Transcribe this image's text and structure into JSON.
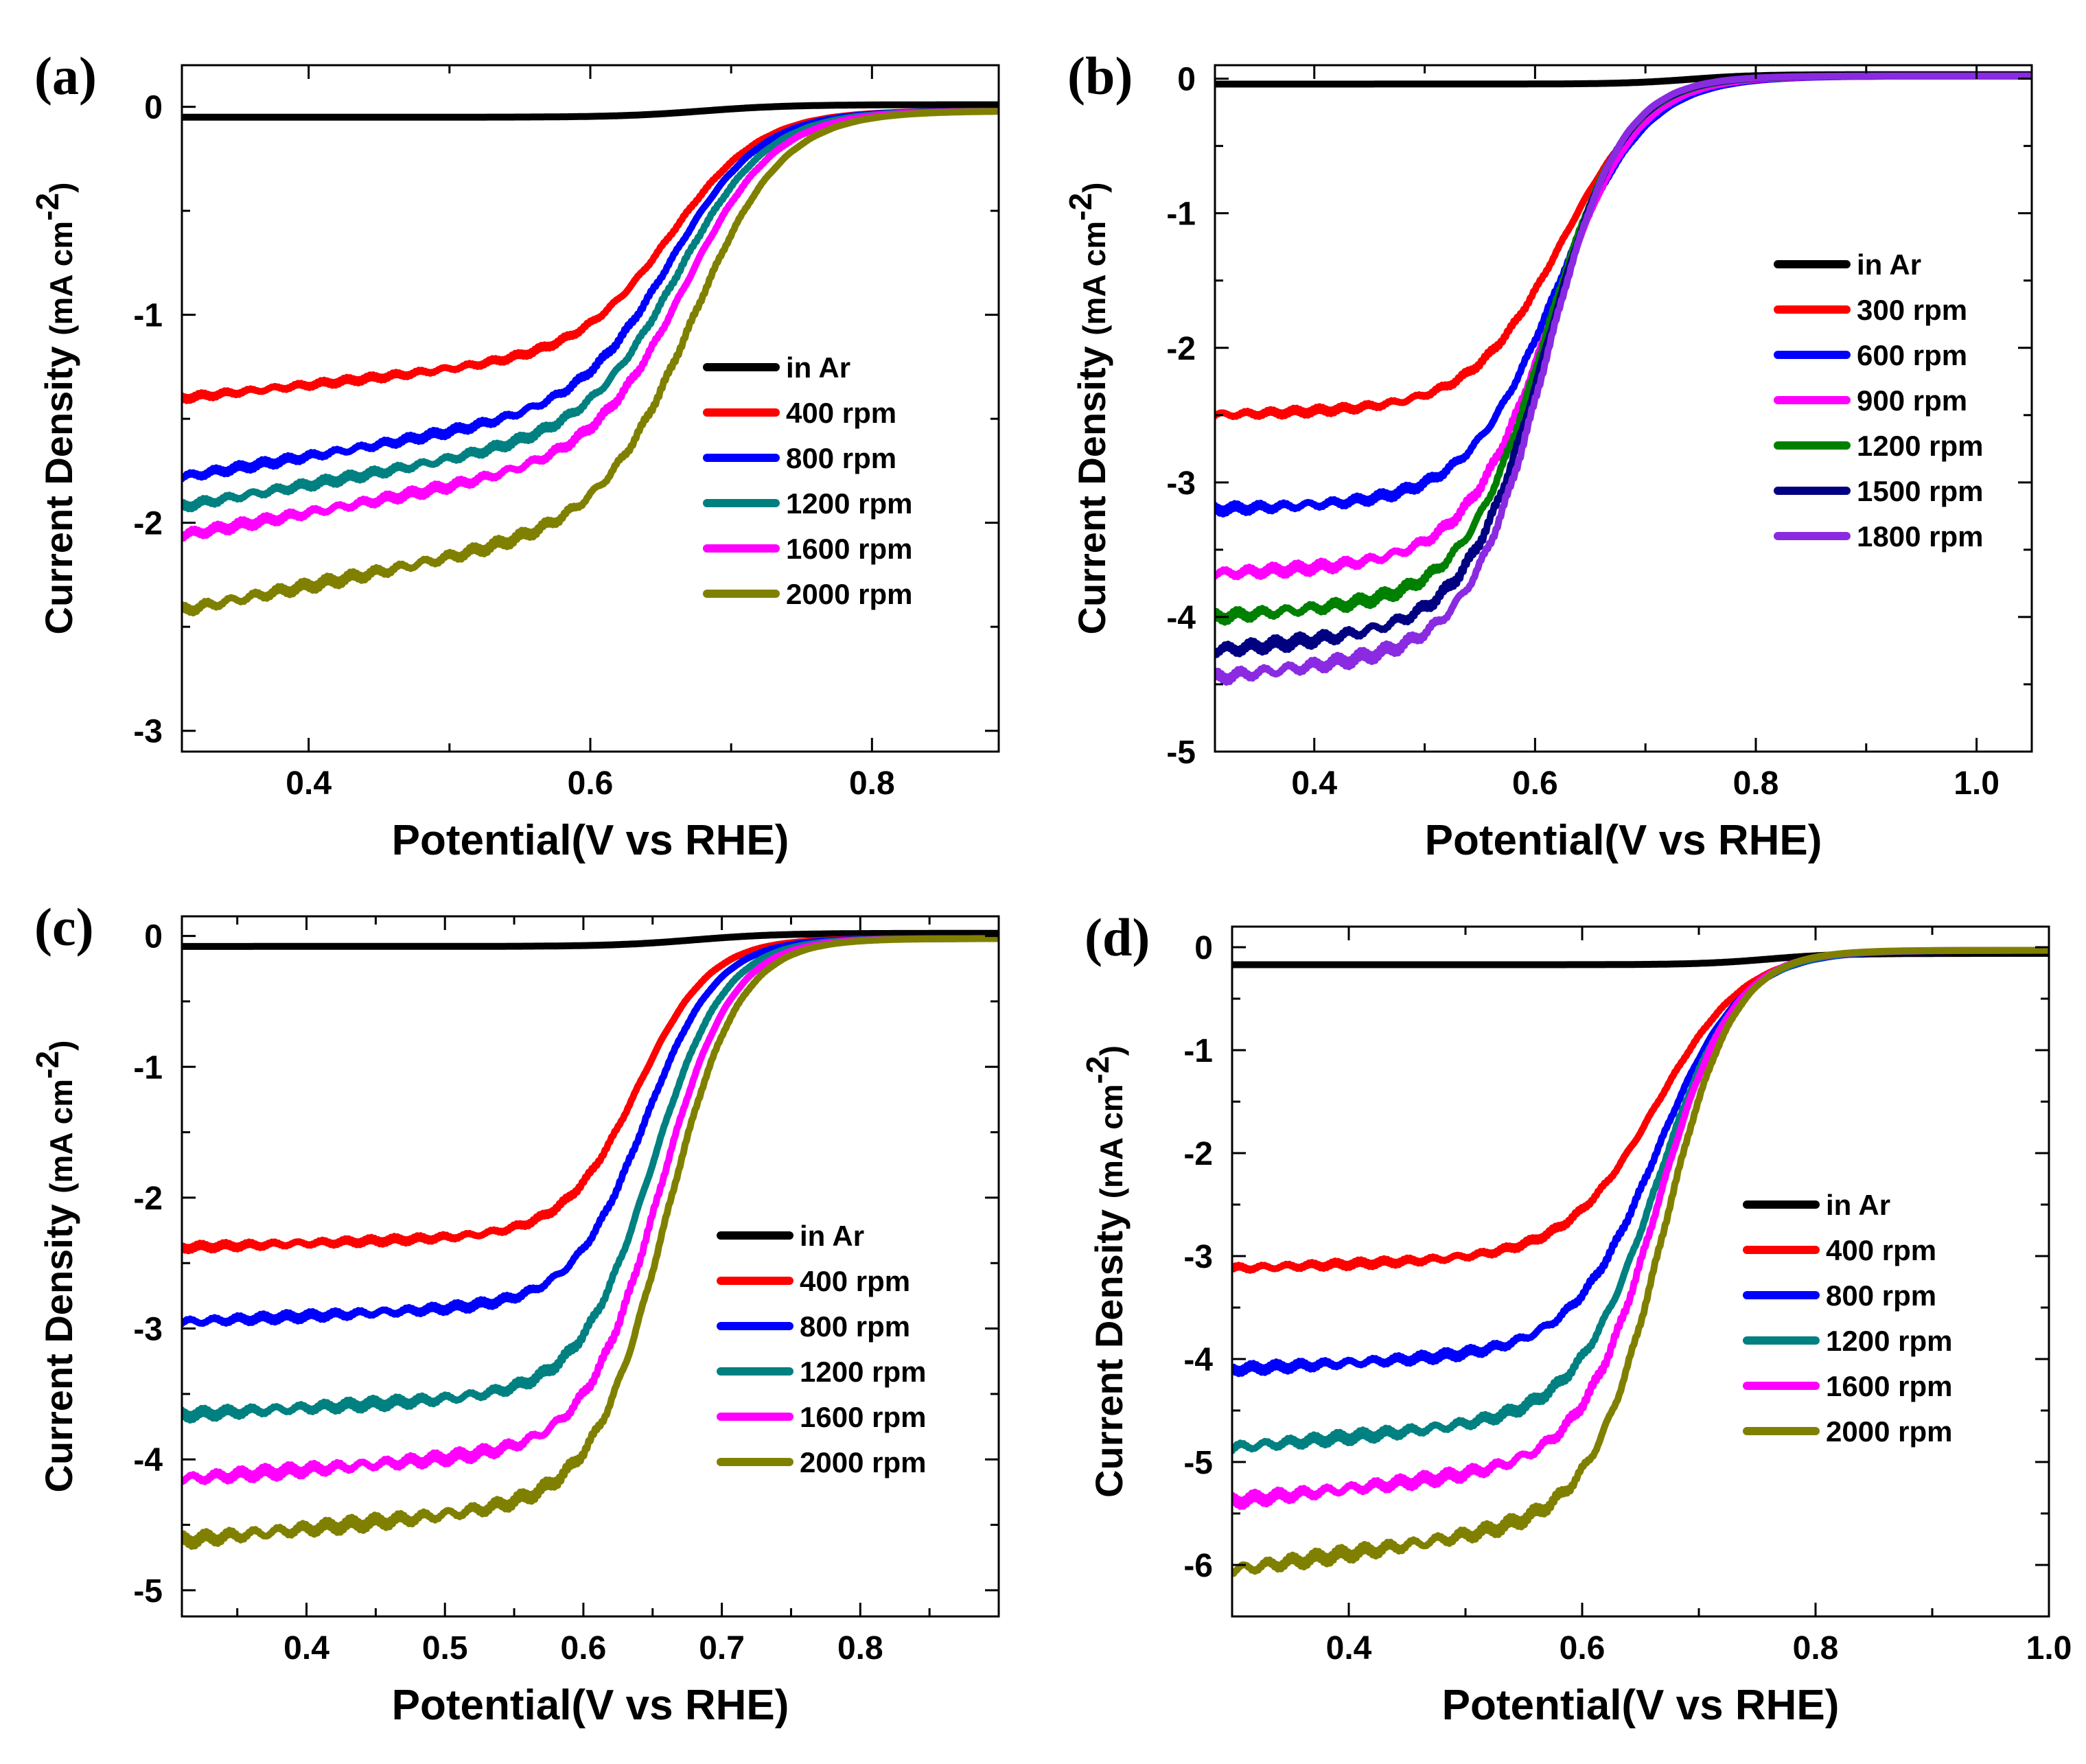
{
  "figure": {
    "panels": [
      "a",
      "b",
      "c",
      "d"
    ]
  },
  "chart_data": [
    {
      "type": "line",
      "panel_label": "(a)",
      "title": "",
      "xlabel": "Potential(V vs RHE)",
      "ylabel": {
        "main": "Current Density",
        "unit": "(mA cm",
        "sup": "-2",
        "close": ")"
      },
      "xlim": [
        0.31,
        0.89
      ],
      "ylim": [
        -3.1,
        0.2
      ],
      "xticks": [
        0.4,
        0.6,
        0.8
      ],
      "xtick_labels": [
        "0.4",
        "0.6",
        "0.8"
      ],
      "yticks": [
        0,
        -1,
        -2,
        -3
      ],
      "ytick_labels": [
        "0",
        "-1",
        "-2",
        "-3"
      ],
      "legend_position": "center-right",
      "series": [
        {
          "name": "in Ar",
          "color": "#000000",
          "curve": {
            "kind": "flat",
            "start": -0.05,
            "end": 0.01,
            "mid": 0.68,
            "w": 0.03
          }
        },
        {
          "name": "400  rpm",
          "color": "#ff0000",
          "curve": {
            "kind": "orr",
            "jL": -1.4,
            "s": 0.7,
            "e": 0.66,
            "w": 0.032,
            "x0": 0.31,
            "end": -0.02
          }
        },
        {
          "name": "800  rpm",
          "color": "#0000ff",
          "curve": {
            "kind": "orr",
            "jL": -1.78,
            "s": 1.1,
            "e": 0.66,
            "w": 0.032,
            "x0": 0.31,
            "end": -0.02
          }
        },
        {
          "name": "1200 rpm",
          "color": "#008080",
          "curve": {
            "kind": "orr",
            "jL": -1.92,
            "s": 1.15,
            "e": 0.665,
            "w": 0.032,
            "x0": 0.31,
            "end": -0.02
          }
        },
        {
          "name": "1600 rpm",
          "color": "#ff00ff",
          "curve": {
            "kind": "orr",
            "jL": -2.06,
            "s": 1.2,
            "e": 0.67,
            "w": 0.032,
            "x0": 0.31,
            "end": -0.02
          }
        },
        {
          "name": "2000 rpm",
          "color": "#808000",
          "curve": {
            "kind": "orr",
            "jL": -2.42,
            "s": 1.3,
            "e": 0.675,
            "w": 0.032,
            "x0": 0.31,
            "end": -0.02
          }
        }
      ]
    },
    {
      "type": "line",
      "panel_label": "(b)",
      "title": "",
      "xlabel": "Potential(V vs RHE)",
      "ylabel": {
        "main": "Current Density",
        "unit": "(mA cm",
        "sup": "-2",
        "close": ")"
      },
      "xlim": [
        0.31,
        1.05
      ],
      "ylim": [
        -5.0,
        0.1
      ],
      "xticks": [
        0.4,
        0.6,
        0.8,
        1.0
      ],
      "xtick_labels": [
        "0.4",
        "0.6",
        "0.8",
        "1.0"
      ],
      "yticks": [
        0,
        -1,
        -2,
        -3,
        -4,
        -5
      ],
      "ytick_labels": [
        "0",
        "-1",
        "-2",
        "-3",
        "-4",
        "-5"
      ],
      "legend_position": "center-right",
      "series": [
        {
          "name": "in Ar",
          "color": "#000000",
          "curve": {
            "kind": "flat",
            "start": -0.04,
            "end": 0.03,
            "mid": 0.74,
            "w": 0.03
          }
        },
        {
          "name": "300  rpm",
          "color": "#ff0000",
          "curve": {
            "kind": "orr",
            "jL": -2.5,
            "s": 0.25,
            "e": 0.625,
            "w": 0.04,
            "x0": 0.31,
            "end": 0.02
          }
        },
        {
          "name": "600  rpm",
          "color": "#0000ff",
          "curve": {
            "kind": "orr",
            "jL": -3.2,
            "s": 0.25,
            "e": 0.62,
            "w": 0.04,
            "x0": 0.31,
            "end": 0.02
          }
        },
        {
          "name": "900  rpm",
          "color": "#ff00ff",
          "curve": {
            "kind": "orr",
            "jL": -3.68,
            "s": 0.4,
            "e": 0.615,
            "w": 0.038,
            "x0": 0.31,
            "end": 0.02
          }
        },
        {
          "name": "1200 rpm",
          "color": "#008000",
          "curve": {
            "kind": "orr",
            "jL": -4.0,
            "s": 0.6,
            "e": 0.61,
            "w": 0.036,
            "x0": 0.31,
            "end": 0.02
          }
        },
        {
          "name": "1500 rpm",
          "color": "#000080",
          "curve": {
            "kind": "orr",
            "jL": -4.25,
            "s": 0.8,
            "e": 0.61,
            "w": 0.035,
            "x0": 0.31,
            "end": 0.02
          }
        },
        {
          "name": "1800 rpm",
          "color": "#8a2be2",
          "curve": {
            "kind": "orr",
            "jL": -4.45,
            "s": 0.9,
            "e": 0.61,
            "w": 0.034,
            "x0": 0.31,
            "end": 0.02
          }
        }
      ]
    },
    {
      "type": "line",
      "panel_label": "(c)",
      "title": "",
      "xlabel": "Potential(V vs RHE)",
      "ylabel": {
        "main": "Current Density",
        "unit": "(mA cm",
        "sup": "-2",
        "close": ")"
      },
      "xlim": [
        0.31,
        0.9
      ],
      "ylim": [
        -5.2,
        0.15
      ],
      "xticks": [
        0.4,
        0.5,
        0.6,
        0.7,
        0.8
      ],
      "xtick_labels": [
        "0.4",
        "0.5",
        "0.6",
        "0.7",
        "0.8"
      ],
      "yticks": [
        0,
        -1,
        -2,
        -3,
        -4,
        -5
      ],
      "ytick_labels": [
        "0",
        "-1",
        "-2",
        "-3",
        "-4",
        "-5"
      ],
      "legend_position": "center-right",
      "series": [
        {
          "name": "in Ar",
          "color": "#000000",
          "curve": {
            "kind": "flat",
            "start": -0.08,
            "end": 0.02,
            "mid": 0.68,
            "w": 0.03
          }
        },
        {
          "name": "400  rpm",
          "color": "#ff0000",
          "curve": {
            "kind": "orr",
            "jL": -2.38,
            "s": 0.35,
            "e": 0.64,
            "w": 0.026,
            "x0": 0.31,
            "end": -0.02
          }
        },
        {
          "name": "800  rpm",
          "color": "#0000ff",
          "curve": {
            "kind": "orr",
            "jL": -2.95,
            "s": 0.5,
            "e": 0.645,
            "w": 0.026,
            "x0": 0.31,
            "end": -0.02
          }
        },
        {
          "name": "1200 rpm",
          "color": "#008080",
          "curve": {
            "kind": "orr",
            "jL": -3.66,
            "s": 0.6,
            "e": 0.65,
            "w": 0.026,
            "x0": 0.31,
            "end": -0.02
          }
        },
        {
          "name": "1600 rpm",
          "color": "#ff00ff",
          "curve": {
            "kind": "orr",
            "jL": -4.15,
            "s": 0.8,
            "e": 0.655,
            "w": 0.026,
            "x0": 0.31,
            "end": -0.02
          }
        },
        {
          "name": "2000 rpm",
          "color": "#808000",
          "curve": {
            "kind": "orr",
            "jL": -4.62,
            "s": 1.0,
            "e": 0.66,
            "w": 0.026,
            "x0": 0.31,
            "end": -0.02
          }
        }
      ]
    },
    {
      "type": "line",
      "panel_label": "(d)",
      "title": "",
      "xlabel": "Potential(V vs RHE)",
      "ylabel": {
        "main": "Current Density",
        "unit": "(mA cm",
        "sup": "-2",
        "close": ")"
      },
      "xlim": [
        0.3,
        1.0
      ],
      "ylim": [
        -6.5,
        0.2
      ],
      "xticks": [
        0.4,
        0.6,
        0.8,
        1.0
      ],
      "xtick_labels": [
        "0.4",
        "0.6",
        "0.8",
        "1.0"
      ],
      "yticks": [
        0,
        -1,
        -2,
        -3,
        -4,
        -5,
        -6
      ],
      "ytick_labels": [
        "0",
        "-1",
        "-2",
        "-3",
        "-4",
        "-5",
        "-6"
      ],
      "legend_position": "center-right",
      "series": [
        {
          "name": "in Ar",
          "color": "#000000",
          "curve": {
            "kind": "flat",
            "start": -0.17,
            "end": -0.06,
            "mid": 0.76,
            "w": 0.03
          }
        },
        {
          "name": "400  rpm",
          "color": "#ff0000",
          "curve": {
            "kind": "orr",
            "jL": -3.12,
            "s": 0.4,
            "e": 0.665,
            "w": 0.038,
            "x0": 0.3,
            "end": -0.03
          }
        },
        {
          "name": "800  rpm",
          "color": "#0000ff",
          "curve": {
            "kind": "orr",
            "jL": -4.1,
            "s": 0.6,
            "e": 0.665,
            "w": 0.036,
            "x0": 0.3,
            "end": -0.03
          }
        },
        {
          "name": "1200 rpm",
          "color": "#008080",
          "curve": {
            "kind": "orr",
            "jL": -4.86,
            "s": 1.0,
            "e": 0.665,
            "w": 0.034,
            "x0": 0.3,
            "end": -0.03
          }
        },
        {
          "name": "1600 rpm",
          "color": "#ff00ff",
          "curve": {
            "kind": "orr",
            "jL": -5.38,
            "s": 1.2,
            "e": 0.665,
            "w": 0.032,
            "x0": 0.3,
            "end": -0.03
          }
        },
        {
          "name": "2000 rpm",
          "color": "#808000",
          "curve": {
            "kind": "orr",
            "jL": -6.05,
            "s": 1.6,
            "e": 0.67,
            "w": 0.03,
            "x0": 0.3,
            "end": -0.03
          }
        }
      ]
    }
  ]
}
